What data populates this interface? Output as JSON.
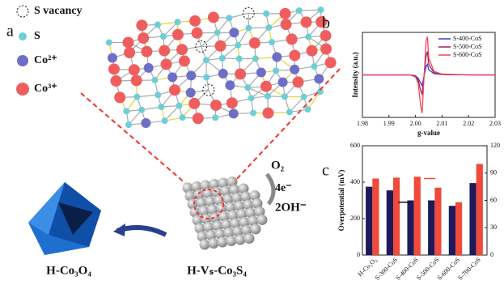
{
  "panel_labels": [
    "a",
    "b",
    "c"
  ],
  "legend": [
    "S vacancy",
    "S",
    "Co²⁺",
    "Co³⁺"
  ],
  "labels": {
    "left": "H-Co₃O₄",
    "right": "H-Vₛ-Co₃S₄",
    "oxygen": "O₂",
    "electrons": "4e⁻",
    "hydroxide": "2OH⁻"
  },
  "chart_data": [
    {
      "type": "line",
      "xlabel": "g-value",
      "ylabel": "Intensity (a.u.)",
      "x": [
        1.98,
        1.99,
        1.998,
        2.0,
        2.001,
        2.002,
        2.0025,
        2.003,
        2.004,
        2.0045,
        2.005,
        2.007,
        2.01,
        2.02,
        2.03
      ],
      "xlim": [
        1.98,
        2.03
      ],
      "xticks": [
        1.98,
        1.99,
        {
          "value": 2,
          "label": "2.00"
        },
        2.01,
        2.02,
        2.03
      ],
      "ylim": [
        -1,
        1
      ],
      "legend": "upper right",
      "series": [
        {
          "name": "S-400-CoS",
          "color": "#3a3ad0",
          "values": [
            0,
            0,
            0,
            -0.02,
            -0.08,
            -0.2,
            -0.25,
            -0.1,
            0.2,
            0.25,
            0.12,
            0.03,
            0.01,
            0,
            0
          ]
        },
        {
          "name": "S-500-CoS",
          "color": "#a0205a",
          "values": [
            0,
            0,
            0,
            -0.03,
            -0.12,
            -0.38,
            -0.45,
            -0.15,
            0.45,
            0.55,
            0.25,
            0.05,
            0.01,
            0,
            0
          ]
        },
        {
          "name": "S-600-CoS",
          "color": "#f0445a",
          "values": [
            0,
            0,
            0,
            -0.05,
            -0.2,
            -0.75,
            -0.9,
            -0.3,
            0.8,
            0.9,
            0.4,
            0.08,
            0.02,
            0,
            0
          ]
        }
      ]
    },
    {
      "type": "bar",
      "ylabel": "Overpotential (mV)",
      "categories": [
        "H-Co₃O₄",
        "S-300-CoS",
        "S-400-CoS",
        "S-500-CoS",
        "S-600-CoS",
        "S-700-CoS"
      ],
      "ylim": [
        0,
        600
      ],
      "yticks": [
        0,
        200,
        400,
        600
      ],
      "y2lim": [
        0,
        120
      ],
      "y2ticks": [
        0,
        30,
        60,
        90,
        120
      ],
      "series": [
        {
          "color": "#1c1a5a",
          "values": [
            375,
            355,
            300,
            300,
            270,
            395
          ]
        },
        {
          "color": "#f04a3a",
          "axis": "y2",
          "values": [
            84,
            85,
            86,
            74,
            58,
            100
          ]
        }
      ]
    }
  ]
}
